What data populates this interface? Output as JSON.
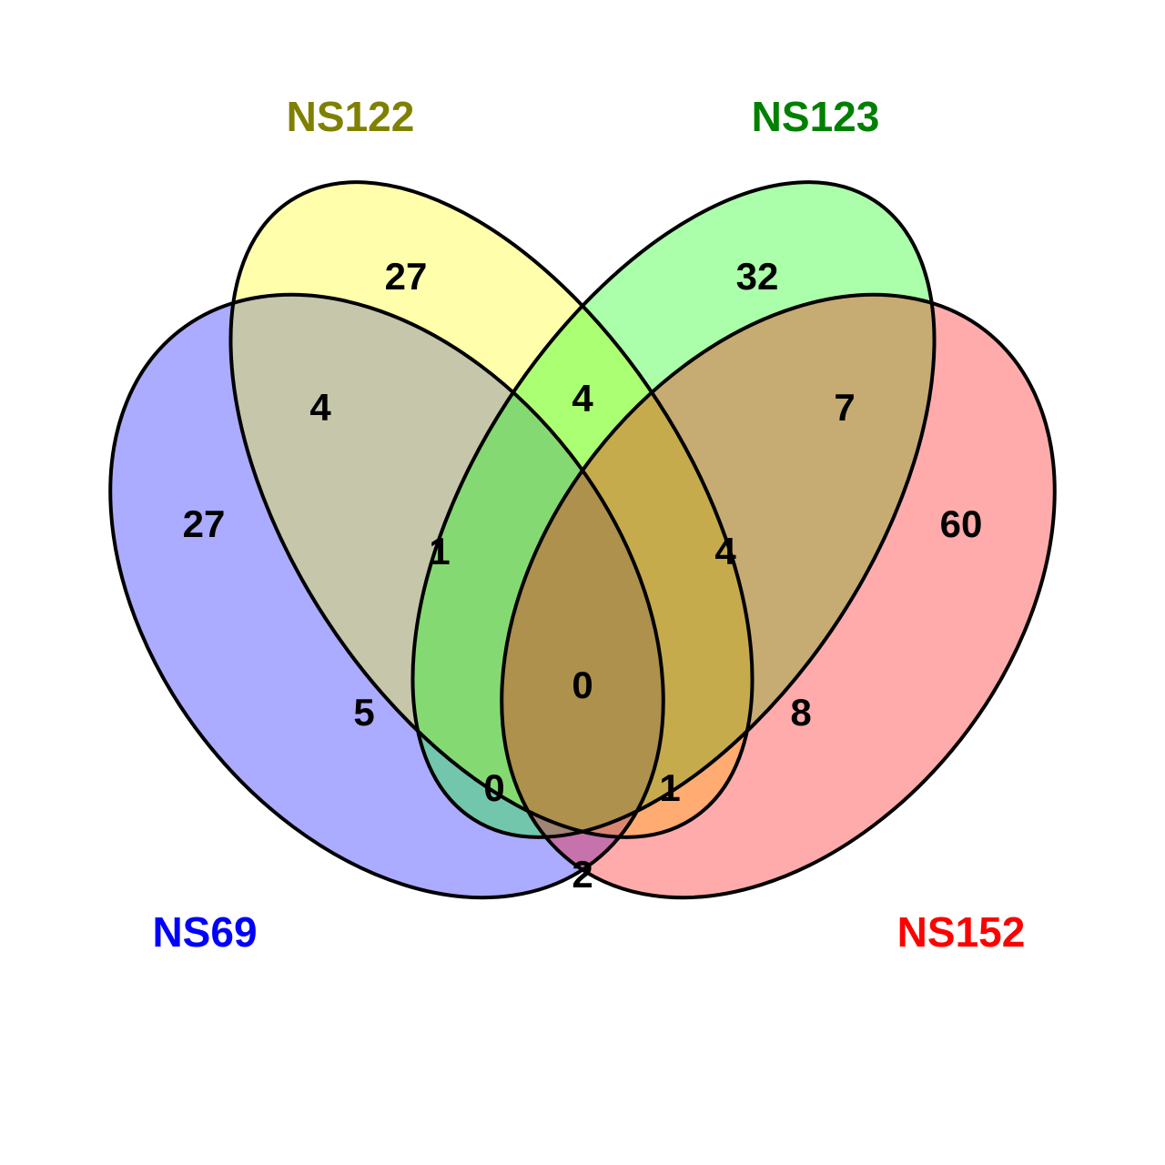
{
  "sets": [
    {
      "id": "ns69",
      "name": "NS69",
      "fill": "#0000ff",
      "label_color": "#0000ff"
    },
    {
      "id": "ns122",
      "name": "NS122",
      "fill": "#ffff00",
      "label_color": "#808000"
    },
    {
      "id": "ns123",
      "name": "NS123",
      "fill": "#00ff00",
      "label_color": "#008000"
    },
    {
      "id": "ns152",
      "name": "NS152",
      "fill": "#ff0000",
      "label_color": "#ff0000"
    }
  ],
  "regions": {
    "ns69_only": "27",
    "ns122_only": "27",
    "ns123_only": "32",
    "ns152_only": "60",
    "ns69_ns122": "4",
    "ns122_ns123": "4",
    "ns123_ns152": "7",
    "ns69_ns122_ns123": "1",
    "ns122_ns123_ns152": "4",
    "ns69_ns123": "5",
    "ns122_ns152": "8",
    "all_four": "0",
    "ns69_ns123_ns152": "0",
    "ns69_ns122_ns152": "1",
    "ns69_ns152": "2"
  }
}
